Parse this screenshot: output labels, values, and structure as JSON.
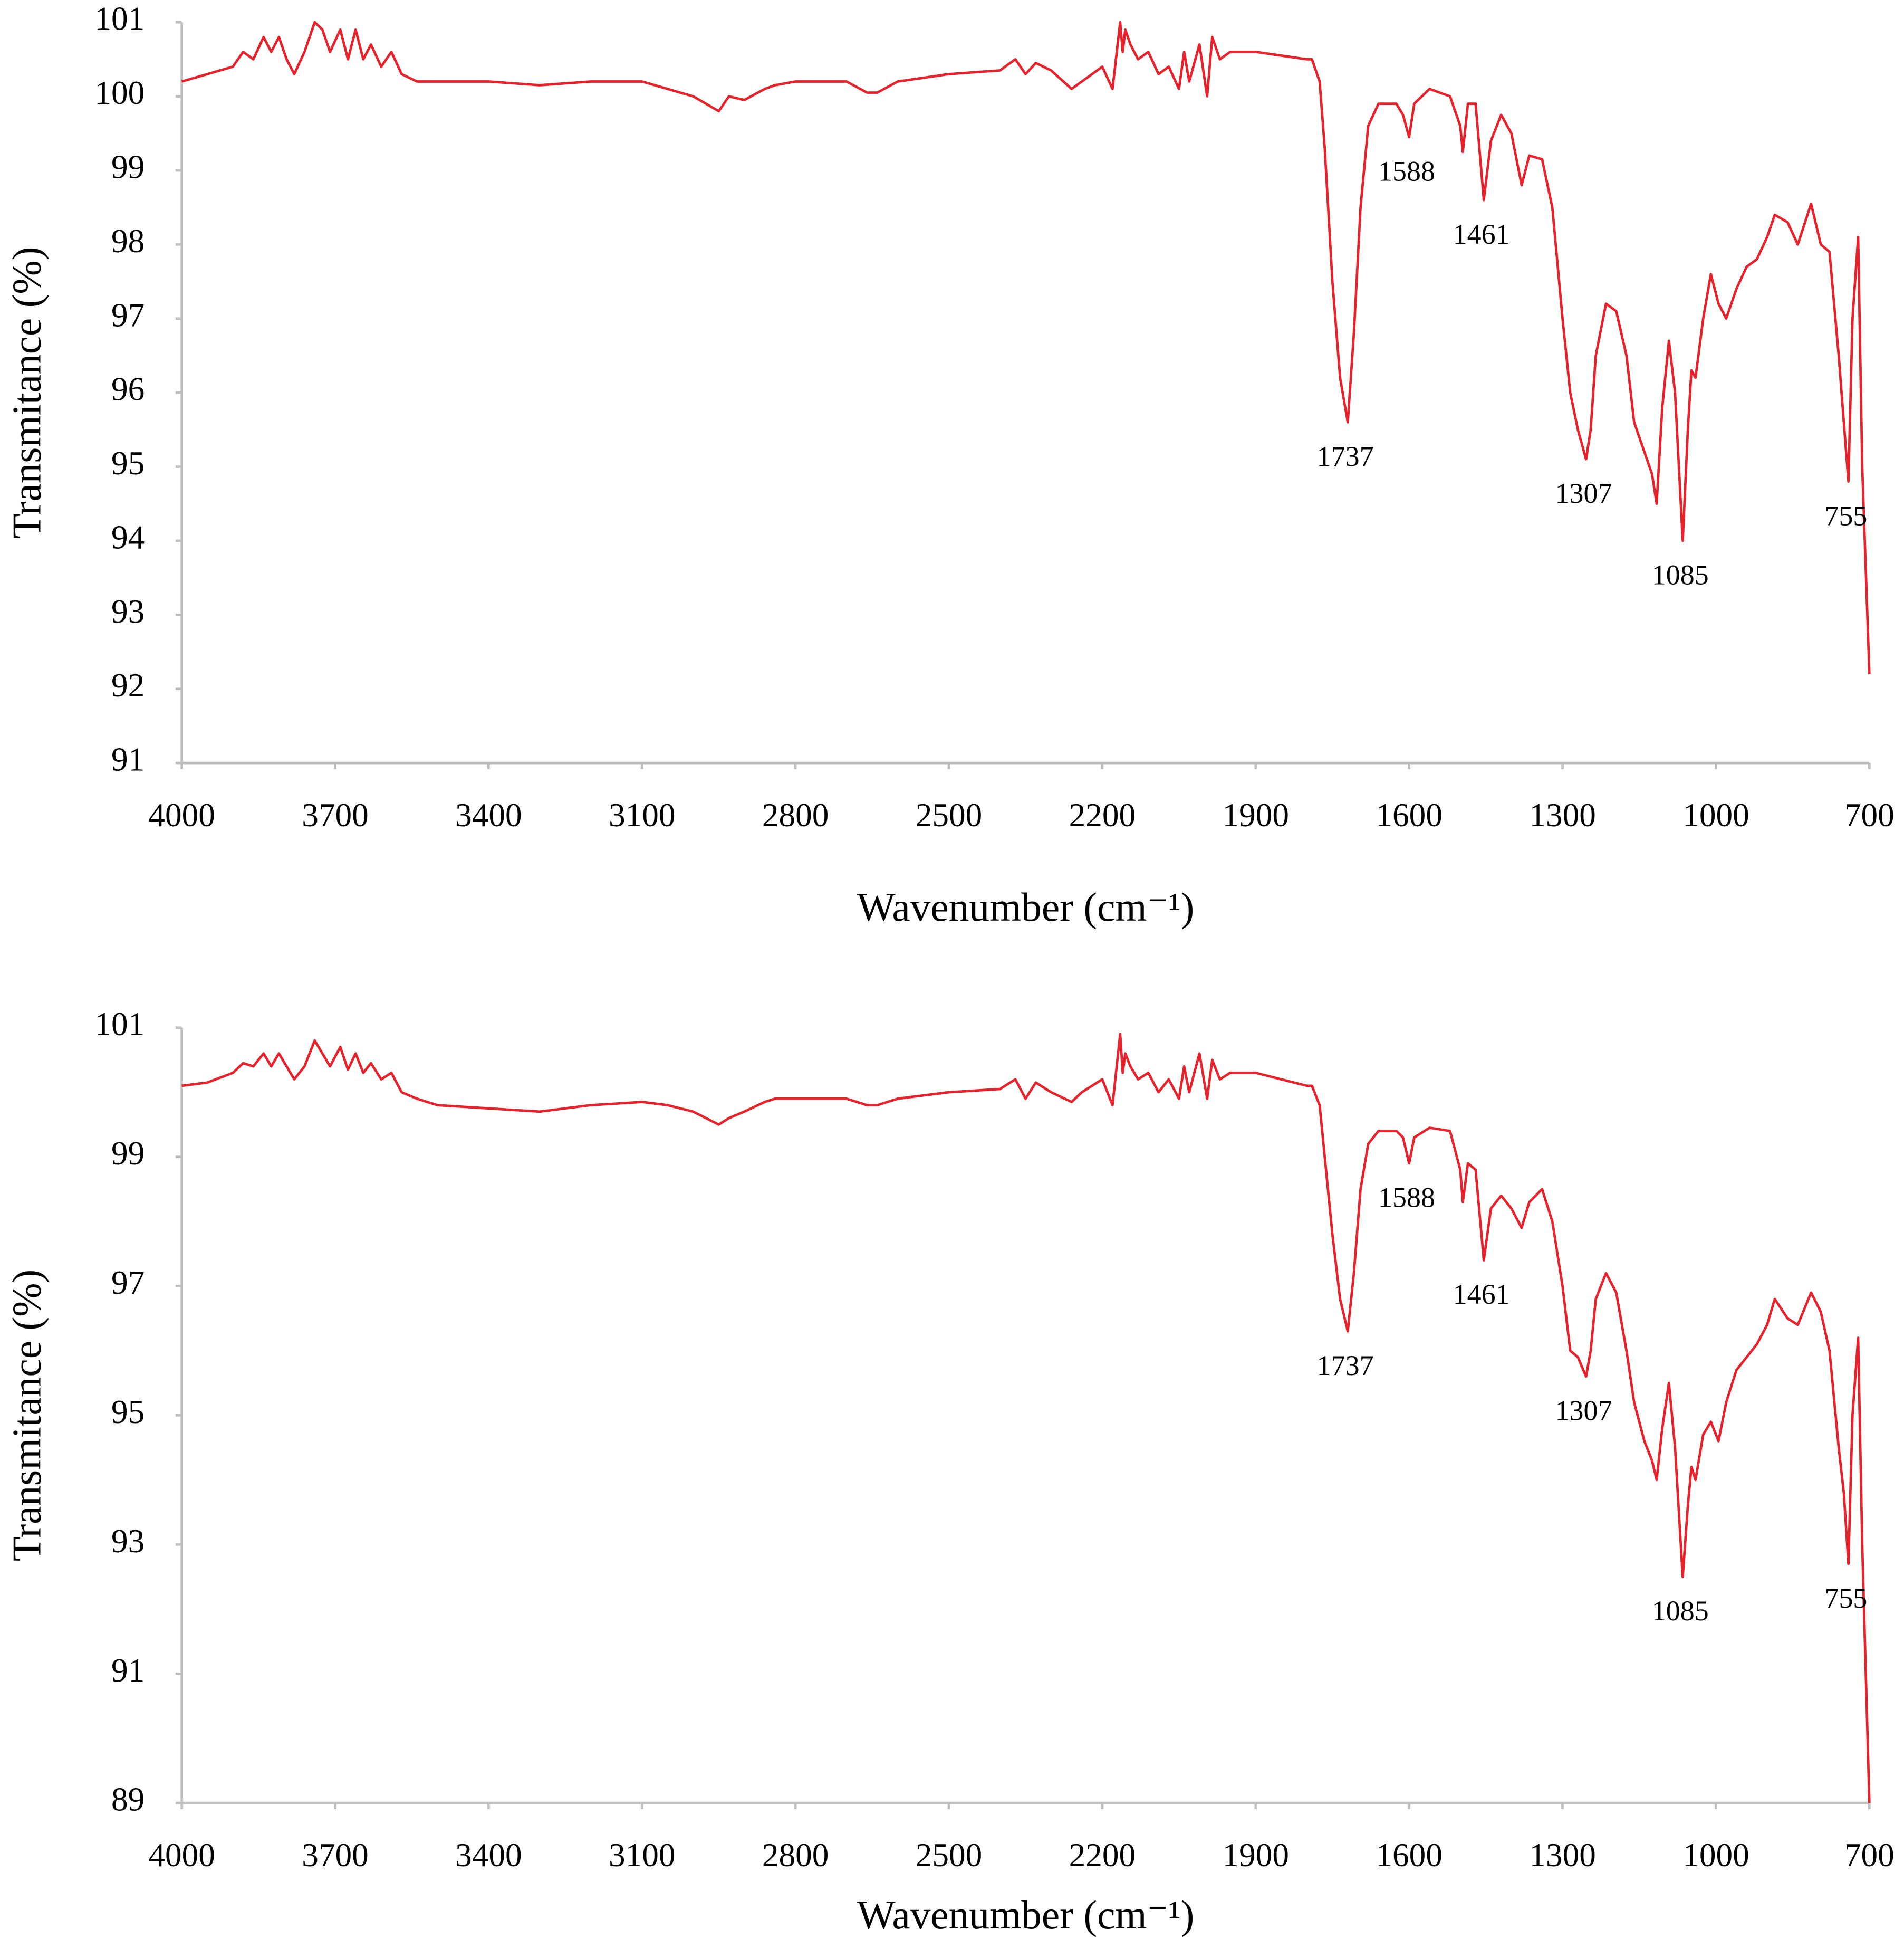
{
  "chart_data": [
    {
      "type": "line",
      "x_label": "Wavenumber (cm⁻¹)",
      "y_label": "Transmitance (%)",
      "color": "#e8212a",
      "xlim": [
        4000,
        700
      ],
      "xticks": [
        4000,
        3700,
        3400,
        3100,
        2800,
        2500,
        2200,
        1900,
        1600,
        1300,
        1000,
        700
      ],
      "ylim": [
        91,
        101
      ],
      "yticks": [
        91,
        92,
        93,
        94,
        95,
        96,
        97,
        98,
        99,
        100,
        101
      ],
      "x": [
        4000,
        3950,
        3900,
        3880,
        3860,
        3840,
        3825,
        3810,
        3795,
        3780,
        3760,
        3740,
        3725,
        3710,
        3690,
        3675,
        3660,
        3645,
        3630,
        3610,
        3590,
        3570,
        3540,
        3500,
        3400,
        3300,
        3200,
        3100,
        3050,
        3000,
        2950,
        2930,
        2900,
        2860,
        2840,
        2800,
        2700,
        2660,
        2640,
        2600,
        2500,
        2400,
        2370,
        2350,
        2330,
        2300,
        2260,
        2240,
        2200,
        2180,
        2165,
        2160,
        2155,
        2145,
        2130,
        2110,
        2090,
        2070,
        2050,
        2040,
        2030,
        2010,
        1995,
        1985,
        1970,
        1950,
        1900,
        1850,
        1800,
        1790,
        1775,
        1765,
        1750,
        1735,
        1720,
        1708,
        1695,
        1680,
        1660,
        1625,
        1612,
        1600,
        1590,
        1560,
        1520,
        1500,
        1495,
        1485,
        1470,
        1454,
        1440,
        1420,
        1400,
        1380,
        1365,
        1340,
        1320,
        1300,
        1285,
        1270,
        1254,
        1245,
        1235,
        1215,
        1195,
        1175,
        1160,
        1140,
        1125,
        1116,
        1105,
        1092,
        1080,
        1065,
        1055,
        1048,
        1040,
        1025,
        1010,
        995,
        980,
        960,
        940,
        920,
        900,
        885,
        860,
        840,
        814,
        795,
        778,
        760,
        750,
        741,
        733,
        722,
        714,
        700
      ],
      "values": [
        100.2,
        100.3,
        100.4,
        100.6,
        100.5,
        100.8,
        100.6,
        100.8,
        100.5,
        100.3,
        100.6,
        101.0,
        100.9,
        100.6,
        100.9,
        100.5,
        100.9,
        100.5,
        100.7,
        100.4,
        100.6,
        100.3,
        100.2,
        100.2,
        100.2,
        100.15,
        100.2,
        100.2,
        100.1,
        100.0,
        99.8,
        100.0,
        99.95,
        100.1,
        100.15,
        100.2,
        100.2,
        100.05,
        100.05,
        100.2,
        100.3,
        100.35,
        100.5,
        100.3,
        100.45,
        100.35,
        100.1,
        100.2,
        100.4,
        100.1,
        101.0,
        100.6,
        100.9,
        100.7,
        100.5,
        100.6,
        100.3,
        100.4,
        100.1,
        100.6,
        100.2,
        100.7,
        100.0,
        100.8,
        100.5,
        100.6,
        100.6,
        100.55,
        100.5,
        100.5,
        100.2,
        99.3,
        97.5,
        96.2,
        95.6,
        96.8,
        98.5,
        99.6,
        99.9,
        99.9,
        99.75,
        99.45,
        99.9,
        100.1,
        100.0,
        99.6,
        99.25,
        99.9,
        99.9,
        98.6,
        99.4,
        99.75,
        99.5,
        98.8,
        99.2,
        99.15,
        98.5,
        97.0,
        96.0,
        95.5,
        95.1,
        95.5,
        96.5,
        97.2,
        97.1,
        96.5,
        95.6,
        95.2,
        94.9,
        94.5,
        95.8,
        96.7,
        96.0,
        94.0,
        95.5,
        96.3,
        96.2,
        97.0,
        97.6,
        97.2,
        97.0,
        97.4,
        97.7,
        97.8,
        98.1,
        98.4,
        98.3,
        98.0,
        98.55,
        98.0,
        97.9,
        96.5,
        95.6,
        94.8,
        97.0,
        98.1,
        95.0,
        92.2
      ],
      "annotations": [
        {
          "label": "1737",
          "x": 1720,
          "y": 95.6
        },
        {
          "label": "1588",
          "x": 1600,
          "y": 99.45
        },
        {
          "label": "1461",
          "x": 1454,
          "y": 98.6
        },
        {
          "label": "1307",
          "x": 1254,
          "y": 95.1
        },
        {
          "label": "1085",
          "x": 1065,
          "y": 94.0
        },
        {
          "label": "755",
          "x": 741,
          "y": 94.8
        }
      ]
    },
    {
      "type": "line",
      "x_label": "Wavenumber (cm⁻¹)",
      "y_label": "Transmitance (%)",
      "color": "#e8212a",
      "xlim": [
        4000,
        700
      ],
      "xticks": [
        4000,
        3700,
        3400,
        3100,
        2800,
        2500,
        2200,
        1900,
        1600,
        1300,
        1000,
        700
      ],
      "ylim": [
        89,
        101
      ],
      "yticks": [
        89,
        91,
        93,
        95,
        97,
        99,
        101
      ],
      "x": [
        4000,
        3950,
        3900,
        3880,
        3860,
        3840,
        3825,
        3810,
        3795,
        3780,
        3760,
        3740,
        3725,
        3710,
        3690,
        3675,
        3660,
        3645,
        3630,
        3610,
        3590,
        3570,
        3540,
        3500,
        3400,
        3300,
        3200,
        3100,
        3050,
        3000,
        2950,
        2930,
        2900,
        2860,
        2840,
        2800,
        2700,
        2660,
        2640,
        2600,
        2500,
        2400,
        2370,
        2350,
        2330,
        2300,
        2260,
        2240,
        2200,
        2180,
        2165,
        2160,
        2155,
        2145,
        2130,
        2110,
        2090,
        2070,
        2050,
        2040,
        2030,
        2010,
        1995,
        1985,
        1970,
        1950,
        1900,
        1850,
        1800,
        1790,
        1775,
        1765,
        1750,
        1735,
        1720,
        1708,
        1695,
        1680,
        1660,
        1625,
        1612,
        1600,
        1590,
        1560,
        1520,
        1500,
        1495,
        1485,
        1470,
        1454,
        1440,
        1420,
        1400,
        1380,
        1365,
        1340,
        1320,
        1300,
        1285,
        1270,
        1254,
        1245,
        1235,
        1215,
        1195,
        1175,
        1160,
        1140,
        1125,
        1116,
        1105,
        1092,
        1080,
        1065,
        1055,
        1048,
        1040,
        1025,
        1010,
        995,
        980,
        960,
        940,
        920,
        900,
        885,
        860,
        840,
        814,
        795,
        778,
        760,
        750,
        741,
        733,
        722,
        714,
        700
      ],
      "values": [
        100.1,
        100.15,
        100.3,
        100.45,
        100.4,
        100.6,
        100.4,
        100.6,
        100.4,
        100.2,
        100.4,
        100.8,
        100.6,
        100.4,
        100.7,
        100.35,
        100.6,
        100.3,
        100.45,
        100.2,
        100.3,
        100.0,
        99.9,
        99.8,
        99.75,
        99.7,
        99.8,
        99.85,
        99.8,
        99.7,
        99.5,
        99.6,
        99.7,
        99.85,
        99.9,
        99.9,
        99.9,
        99.8,
        99.8,
        99.9,
        100.0,
        100.05,
        100.2,
        99.9,
        100.15,
        100.0,
        99.85,
        100.0,
        100.2,
        99.8,
        100.9,
        100.3,
        100.6,
        100.4,
        100.2,
        100.3,
        100.0,
        100.2,
        99.9,
        100.4,
        100.0,
        100.6,
        99.9,
        100.5,
        100.2,
        100.3,
        100.3,
        100.2,
        100.1,
        100.1,
        99.8,
        99.0,
        97.8,
        96.8,
        96.3,
        97.2,
        98.5,
        99.2,
        99.4,
        99.4,
        99.3,
        98.9,
        99.3,
        99.45,
        99.4,
        98.8,
        98.3,
        98.9,
        98.8,
        97.4,
        98.2,
        98.4,
        98.2,
        97.9,
        98.3,
        98.5,
        98.0,
        97.0,
        96.0,
        95.9,
        95.6,
        96.0,
        96.8,
        97.2,
        96.9,
        96.0,
        95.2,
        94.6,
        94.3,
        94.0,
        94.8,
        95.5,
        94.5,
        92.5,
        93.6,
        94.2,
        94.0,
        94.7,
        94.9,
        94.6,
        95.2,
        95.7,
        95.9,
        96.1,
        96.4,
        96.8,
        96.5,
        96.4,
        96.9,
        96.6,
        96.0,
        94.5,
        93.8,
        92.7,
        95.0,
        96.2,
        93.0,
        89.0
      ],
      "annotations": [
        {
          "label": "1737",
          "x": 1720,
          "y": 96.3
        },
        {
          "label": "1588",
          "x": 1600,
          "y": 98.9
        },
        {
          "label": "1461",
          "x": 1454,
          "y": 97.4
        },
        {
          "label": "1307",
          "x": 1254,
          "y": 95.6
        },
        {
          "label": "1085",
          "x": 1065,
          "y": 92.5
        },
        {
          "label": "755",
          "x": 741,
          "y": 92.7
        }
      ]
    }
  ]
}
